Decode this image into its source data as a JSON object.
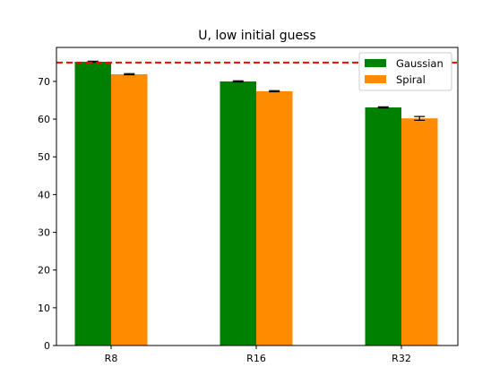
{
  "chart_data": {
    "type": "bar",
    "title": "U, low initial guess",
    "xlabel": "",
    "ylabel": "",
    "categories": [
      "R8",
      "R16",
      "R32"
    ],
    "series": [
      {
        "name": "Gaussian",
        "color": "#008000",
        "values": [
          75.2,
          70.0,
          63.1
        ],
        "errors": [
          0.15,
          0.15,
          0.15
        ]
      },
      {
        "name": "Spiral",
        "color": "#ff8c00",
        "values": [
          71.9,
          67.4,
          60.2
        ],
        "errors": [
          0.15,
          0.15,
          0.5
        ]
      }
    ],
    "reference_line": {
      "y": 75.0,
      "color": "#ff0000",
      "style": "dashed"
    },
    "ylim": [
      0,
      79
    ],
    "yticks": [
      0,
      10,
      20,
      30,
      40,
      50,
      60,
      70
    ],
    "grid": false,
    "legend": "top-right"
  }
}
